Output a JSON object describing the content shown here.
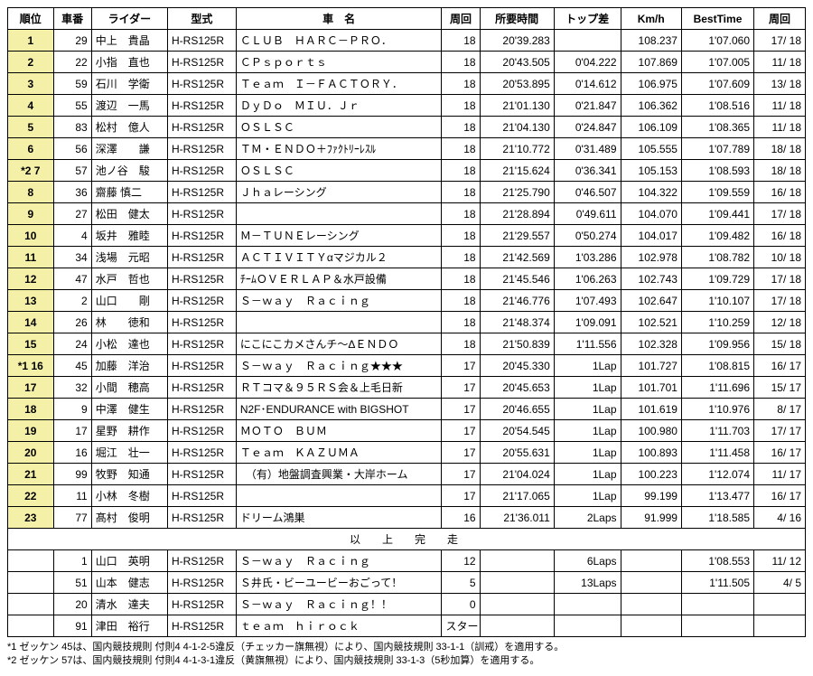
{
  "headers": [
    "順位",
    "車番",
    "ライダー",
    "型式",
    "車　名",
    "周回",
    "所要時間",
    "トップ差",
    "Km/h",
    "BestTime",
    "周回"
  ],
  "rows": [
    {
      "rank": "1",
      "no": "29",
      "rider": "中上　貴晶",
      "model": "H-RS125R",
      "team": "ＣＬＵＢ　ＨＡＲＣ－ＰＲＯ．",
      "laps": "18",
      "time": "20'39.283",
      "gap": "",
      "kmh": "108.237",
      "best": "1'07.060",
      "bl": "17/ 18"
    },
    {
      "rank": "2",
      "no": "22",
      "rider": "小指　直也",
      "model": "H-RS125R",
      "team": "ＣＰｓｐｏｒｔｓ",
      "laps": "18",
      "time": "20'43.505",
      "gap": "0'04.222",
      "kmh": "107.869",
      "best": "1'07.005",
      "bl": "11/ 18"
    },
    {
      "rank": "3",
      "no": "59",
      "rider": "石川　学衛",
      "model": "H-RS125R",
      "team": "Ｔｅａｍ　Ｉ－ＦＡＣＴＯＲＹ．",
      "laps": "18",
      "time": "20'53.895",
      "gap": "0'14.612",
      "kmh": "106.975",
      "best": "1'07.609",
      "bl": "13/ 18"
    },
    {
      "rank": "4",
      "no": "55",
      "rider": "渡辺　一馬",
      "model": "H-RS125R",
      "team": "ＤｙＤｏ　ＭＩＵ．Ｊｒ",
      "laps": "18",
      "time": "21'01.130",
      "gap": "0'21.847",
      "kmh": "106.362",
      "best": "1'08.516",
      "bl": "11/ 18"
    },
    {
      "rank": "5",
      "no": "83",
      "rider": "松村　億人",
      "model": "H-RS125R",
      "team": "ＯＳＬＳＣ",
      "laps": "18",
      "time": "21'04.130",
      "gap": "0'24.847",
      "kmh": "106.109",
      "best": "1'08.365",
      "bl": "11/ 18"
    },
    {
      "rank": "6",
      "no": "56",
      "rider": "深澤　　謙",
      "model": "H-RS125R",
      "team": "ＴＭ・ＥＮＤＯ＋ﾌｧｸﾄﾘｰﾚｽﾙ",
      "laps": "18",
      "time": "21'10.772",
      "gap": "0'31.489",
      "kmh": "105.555",
      "best": "1'07.789",
      "bl": "18/ 18"
    },
    {
      "rank": "*2 7",
      "no": "57",
      "rider": "池ノ谷　駿",
      "model": "H-RS125R",
      "team": "ＯＳＬＳＣ",
      "laps": "18",
      "time": "21'15.624",
      "gap": "0'36.341",
      "kmh": "105.153",
      "best": "1'08.593",
      "bl": "18/ 18"
    },
    {
      "rank": "8",
      "no": "36",
      "rider": "齋藤 慎二",
      "model": "H-RS125R",
      "team": "Ｊｈａレーシング",
      "laps": "18",
      "time": "21'25.790",
      "gap": "0'46.507",
      "kmh": "104.322",
      "best": "1'09.559",
      "bl": "16/ 18"
    },
    {
      "rank": "9",
      "no": "27",
      "rider": "松田　健太",
      "model": "H-RS125R",
      "team": "",
      "laps": "18",
      "time": "21'28.894",
      "gap": "0'49.611",
      "kmh": "104.070",
      "best": "1'09.441",
      "bl": "17/ 18"
    },
    {
      "rank": "10",
      "no": "4",
      "rider": "坂井　雅睦",
      "model": "H-RS125R",
      "team": "Ｍ－ＴＵＮＥレーシング",
      "laps": "18",
      "time": "21'29.557",
      "gap": "0'50.274",
      "kmh": "104.017",
      "best": "1'09.482",
      "bl": "16/ 18"
    },
    {
      "rank": "11",
      "no": "34",
      "rider": "浅場　元昭",
      "model": "H-RS125R",
      "team": "ＡＣＴＩＶＩＴＹαマジカル２",
      "laps": "18",
      "time": "21'42.569",
      "gap": "1'03.286",
      "kmh": "102.978",
      "best": "1'08.782",
      "bl": "10/ 18"
    },
    {
      "rank": "12",
      "no": "47",
      "rider": "水戸　哲也",
      "model": "H-RS125R",
      "team": "ﾁｰﾑＯＶＥＲＬＡＰ＆水戸設備",
      "laps": "18",
      "time": "21'45.546",
      "gap": "1'06.263",
      "kmh": "102.743",
      "best": "1'09.729",
      "bl": "17/ 18"
    },
    {
      "rank": "13",
      "no": "2",
      "rider": "山口　　剛",
      "model": "H-RS125R",
      "team": "Ｓ－ｗａｙ　Ｒａｃｉｎｇ",
      "laps": "18",
      "time": "21'46.776",
      "gap": "1'07.493",
      "kmh": "102.647",
      "best": "1'10.107",
      "bl": "17/ 18"
    },
    {
      "rank": "14",
      "no": "26",
      "rider": "林　　徳和",
      "model": "H-RS125R",
      "team": "",
      "laps": "18",
      "time": "21'48.374",
      "gap": "1'09.091",
      "kmh": "102.521",
      "best": "1'10.259",
      "bl": "12/ 18"
    },
    {
      "rank": "15",
      "no": "24",
      "rider": "小松　達也",
      "model": "H-RS125R",
      "team": "にこにこカメさんチ～ΔＥＮＤＯ",
      "laps": "18",
      "time": "21'50.839",
      "gap": "1'11.556",
      "kmh": "102.328",
      "best": "1'09.956",
      "bl": "15/ 18"
    },
    {
      "rank": "*1 16",
      "no": "45",
      "rider": "加藤　洋治",
      "model": "H-RS125R",
      "team": "Ｓ－ｗａｙ　Ｒａｃｉｎｇ★★★",
      "laps": "17",
      "time": "20'45.330",
      "gap": "1Lap",
      "kmh": "101.727",
      "best": "1'08.815",
      "bl": "16/ 17"
    },
    {
      "rank": "17",
      "no": "32",
      "rider": "小間　穂高",
      "model": "H-RS125R",
      "team": "ＲＴコマ＆９５ＲＳ会＆上毛日新",
      "laps": "17",
      "time": "20'45.653",
      "gap": "1Lap",
      "kmh": "101.701",
      "best": "1'11.696",
      "bl": "15/ 17"
    },
    {
      "rank": "18",
      "no": "9",
      "rider": "中澤　健生",
      "model": "H-RS125R",
      "team": "N2F･ENDURANCE with BIGSHOT",
      "laps": "17",
      "time": "20'46.655",
      "gap": "1Lap",
      "kmh": "101.619",
      "best": "1'10.976",
      "bl": "8/ 17"
    },
    {
      "rank": "19",
      "no": "17",
      "rider": "星野　耕作",
      "model": "H-RS125R",
      "team": "ＭＯＴＯ　ＢＵＭ",
      "laps": "17",
      "time": "20'54.545",
      "gap": "1Lap",
      "kmh": "100.980",
      "best": "1'11.703",
      "bl": "17/ 17"
    },
    {
      "rank": "20",
      "no": "16",
      "rider": "堀江　壮一",
      "model": "H-RS125R",
      "team": "Ｔｅａｍ　ＫＡＺＵＭＡ",
      "laps": "17",
      "time": "20'55.631",
      "gap": "1Lap",
      "kmh": "100.893",
      "best": "1'11.458",
      "bl": "16/ 17"
    },
    {
      "rank": "21",
      "no": "99",
      "rider": "牧野　知通",
      "model": "H-RS125R",
      "team": "　（有）地盤調査興業・大岸ホーム",
      "laps": "17",
      "time": "21'04.024",
      "gap": "1Lap",
      "kmh": "100.223",
      "best": "1'12.074",
      "bl": "11/ 17"
    },
    {
      "rank": "22",
      "no": "11",
      "rider": "小林　冬樹",
      "model": "H-RS125R",
      "team": "",
      "laps": "17",
      "time": "21'17.065",
      "gap": "1Lap",
      "kmh": "99.199",
      "best": "1'13.477",
      "bl": "16/ 17"
    },
    {
      "rank": "23",
      "no": "77",
      "rider": "髙村　俊明",
      "model": "H-RS125R",
      "team": "ドリーム鴻巣",
      "laps": "16",
      "time": "21'36.011",
      "gap": "2Laps",
      "kmh": "91.999",
      "best": "1'18.585",
      "bl": "4/ 16"
    }
  ],
  "sep": "以　上　完　走",
  "dnf": [
    {
      "rank": "",
      "no": "1",
      "rider": "山口　英明",
      "model": "H-RS125R",
      "team": "Ｓ－ｗａｙ　Ｒａｃｉｎｇ",
      "laps": "12",
      "time": "",
      "gap": "6Laps",
      "kmh": "",
      "best": "1'08.553",
      "bl": "11/ 12"
    },
    {
      "rank": "",
      "no": "51",
      "rider": "山本　健志",
      "model": "H-RS125R",
      "team": "Ｓ井氏・ビーユービーおごって！",
      "laps": "5",
      "time": "",
      "gap": "13Laps",
      "kmh": "",
      "best": "1'11.505",
      "bl": "4/  5"
    },
    {
      "rank": "",
      "no": "20",
      "rider": "清水　達夫",
      "model": "H-RS125R",
      "team": "Ｓ－ｗａｙ　Ｒａｃｉｎｇ！！",
      "laps": "0",
      "time": "",
      "gap": "",
      "kmh": "",
      "best": "",
      "bl": ""
    },
    {
      "rank": "",
      "no": "91",
      "rider": "津田　裕行",
      "model": "H-RS125R",
      "team": "ｔｅａｍ　ｈｉｒｏｃｋ",
      "laps": "スタート出来ず",
      "time": "",
      "gap": "",
      "kmh": "",
      "best": "",
      "bl": ""
    }
  ],
  "notes": [
    "*1 ゼッケン 45は、国内競技規則 付則4 4-1-2-5違反（チェッカー旗無視）により、国内競技規則 33-1-1（訓戒）を適用する。",
    "*2 ゼッケン 57は、国内競技規則 付則4 4-1-3-1違反（黄旗無視）により、国内競技規則 33-1-3（5秒加算）を適用する。"
  ]
}
